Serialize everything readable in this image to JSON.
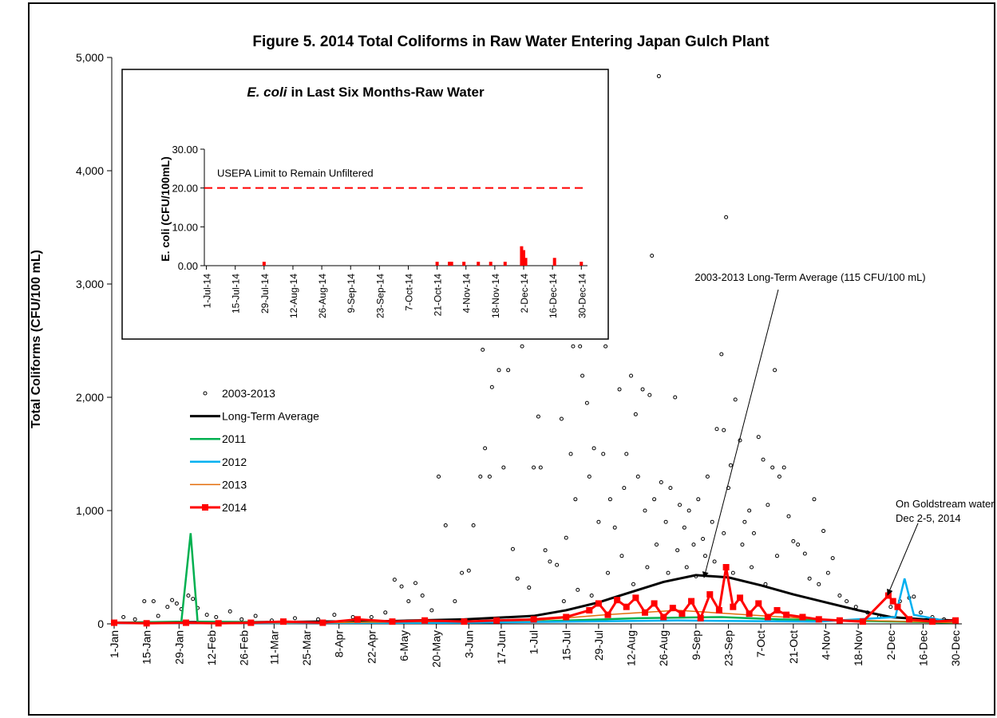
{
  "chart_data": [
    {
      "type": "line",
      "title": "Figure 5. 2014 Total Coliforms in Raw Water Entering Japan Gulch Plant",
      "ylabel": "Total Coliforms (CFU/100 mL)",
      "xlim": [
        "1-Jan",
        "31-Dec"
      ],
      "xticks": [
        "1-Jan",
        "15-Jan",
        "29-Jan",
        "12-Feb",
        "26-Feb",
        "11-Mar",
        "25-Mar",
        "8-Apr",
        "22-Apr",
        "6-May",
        "20-May",
        "3-Jun",
        "17-Jun",
        "1-Jul",
        "15-Jul",
        "29-Jul",
        "12-Aug",
        "26-Aug",
        "9-Sep",
        "23-Sep",
        "7-Oct",
        "21-Oct",
        "4-Nov",
        "18-Nov",
        "2-Dec",
        "16-Dec",
        "30-Dec"
      ],
      "ylim": [
        0,
        5000
      ],
      "yticks": [
        0,
        {
          "value": 1000,
          "label": "1,000"
        },
        {
          "value": 2000,
          "label": "2,000"
        },
        {
          "value": 3000,
          "label": "3,000"
        },
        {
          "value": 4000,
          "label": "4,000"
        },
        {
          "value": 5000,
          "label": "5,000"
        }
      ],
      "series": [
        {
          "name": "2003-2013",
          "color": "#000000",
          "marker": "circle",
          "line": false,
          "x": [
            "5-Jan",
            "10-Jan",
            "14-Jan",
            "18-Jan",
            "20-Jan",
            "24-Jan",
            "26-Jan",
            "28-Jan",
            "30-Jan",
            "2-Feb",
            "4-Feb",
            "6-Feb",
            "10-Feb",
            "14-Feb",
            "20-Feb",
            "25-Feb",
            "3-Mar",
            "10-Mar",
            "20-Mar",
            "30-Mar",
            "6-Apr",
            "14-Apr",
            "22-Apr",
            "28-Apr",
            "2-May",
            "5-May",
            "8-May",
            "11-May",
            "14-May",
            "18-May",
            "21-May",
            "24-May",
            "28-May",
            "31-May",
            "3-Jun",
            "5-Jun",
            "8-Jun",
            "9-Jun",
            "10-Jun",
            "12-Jun",
            "13-Jun",
            "15-Jun",
            "16-Jun",
            "18-Jun",
            "20-Jun",
            "22-Jun",
            "24-Jun",
            "26-Jun",
            "27-Jun",
            "29-Jun",
            "1-Jul",
            "3-Jul",
            "4-Jul",
            "6-Jul",
            "8-Jul",
            "11-Jul",
            "13-Jul",
            "15-Jul",
            "17-Jul",
            "18-Jul",
            "19-Jul",
            "21-Jul",
            "22-Jul",
            "24-Jul",
            "25-Jul",
            "27-Jul",
            "29-Jul",
            "31-Jul",
            "1-Aug",
            "3-Aug",
            "5-Aug",
            "7-Aug",
            "9-Aug",
            "10-Aug",
            "12-Aug",
            "14-Aug",
            "15-Aug",
            "17-Aug",
            "18-Aug",
            "20-Aug",
            "21-Aug",
            "22-Aug",
            "24-Aug",
            "25-Aug",
            "27-Aug",
            "29-Aug",
            "31-Aug",
            "2-Sep",
            "4-Sep",
            "6-Sep",
            "8-Sep",
            "10-Sep",
            "12-Sep",
            "14-Sep",
            "16-Sep",
            "18-Sep",
            "20-Sep",
            "21-Sep",
            "22-Sep",
            "23-Sep",
            "24-Sep",
            "26-Sep",
            "28-Sep",
            "30-Sep",
            "2-Oct",
            "4-Oct",
            "6-Oct",
            "8-Oct",
            "10-Oct",
            "12-Oct",
            "13-Oct",
            "15-Oct",
            "17-Oct",
            "19-Oct",
            "21-Oct",
            "23-Oct",
            "26-Oct",
            "28-Oct",
            "30-Oct",
            "1-Nov",
            "3-Nov",
            "5-Nov",
            "7-Nov",
            "10-Nov",
            "13-Nov",
            "17-Nov",
            "22-Nov",
            "27-Nov",
            "2-Dec",
            "6-Dec",
            "10-Dec",
            "12-Dec",
            "15-Dec",
            "20-Dec",
            "25-Dec",
            "29-Dec",
            "14-Jul",
            "20-Jul",
            "26-Jul",
            "2-Aug",
            "8-Aug",
            "13-Aug",
            "19-Aug",
            "23-Aug",
            "28-Aug",
            "1-Sep",
            "5-Sep",
            "9-Sep",
            "13-Sep",
            "17-Sep",
            "21-Sep",
            "25-Sep",
            "29-Sep",
            "3-Oct",
            "9-Oct",
            "14-Oct"
          ],
          "values": [
            60,
            40,
            200,
            200,
            70,
            150,
            210,
            180,
            130,
            250,
            220,
            140,
            80,
            60,
            110,
            40,
            70,
            30,
            50,
            40,
            80,
            60,
            60,
            100,
            390,
            330,
            200,
            360,
            250,
            120,
            1300,
            870,
            200,
            450,
            470,
            870,
            1300,
            2420,
            1550,
            1300,
            2090,
            4835,
            2240,
            1380,
            2240,
            660,
            400,
            2450,
            4835,
            320,
            1380,
            1830,
            1380,
            650,
            550,
            520,
            1810,
            760,
            1500,
            2450,
            1100,
            2450,
            2190,
            1950,
            1300,
            1550,
            900,
            1500,
            2450,
            1100,
            850,
            2070,
            1200,
            1500,
            2190,
            1850,
            1300,
            2070,
            1000,
            2020,
            3250,
            1100,
            4835,
            1250,
            900,
            1200,
            2000,
            1050,
            850,
            1000,
            700,
            1100,
            750,
            1300,
            900,
            1720,
            2380,
            1710,
            3590,
            1200,
            1400,
            1980,
            1620,
            900,
            1000,
            800,
            1650,
            1450,
            1050,
            1380,
            2240,
            1300,
            1380,
            950,
            730,
            700,
            620,
            400,
            1100,
            350,
            820,
            450,
            580,
            250,
            200,
            150,
            100,
            60,
            150,
            200,
            230,
            240,
            100,
            60,
            40,
            30,
            200,
            300,
            250,
            450,
            600,
            350,
            500,
            700,
            450,
            650,
            500,
            420,
            600,
            550,
            800,
            450,
            700,
            500,
            350,
            600
          ]
        },
        {
          "name": "Long-Term Average",
          "color": "#000000",
          "line": true,
          "x": [
            "1-Jan",
            "1-Feb",
            "1-Mar",
            "1-Apr",
            "1-May",
            "1-Jun",
            "1-Jul",
            "15-Jul",
            "29-Jul",
            "12-Aug",
            "26-Aug",
            "9-Sep",
            "23-Sep",
            "7-Oct",
            "21-Oct",
            "4-Nov",
            "18-Nov",
            "2-Dec",
            "16-Dec",
            "30-Dec"
          ],
          "values": [
            10,
            15,
            15,
            20,
            25,
            40,
            70,
            120,
            190,
            280,
            370,
            430,
            410,
            340,
            260,
            190,
            120,
            60,
            40,
            30
          ]
        },
        {
          "name": "2011",
          "color": "#00b050",
          "line": true,
          "x": [
            "1-Jan",
            "30-Jan",
            "3-Feb",
            "6-Feb",
            "1-Apr",
            "1-Jul",
            "15-Aug",
            "20-Sep",
            "15-Oct",
            "30-Dec"
          ],
          "values": [
            10,
            20,
            800,
            20,
            10,
            20,
            50,
            60,
            40,
            10
          ]
        },
        {
          "name": "2012",
          "color": "#00b0f0",
          "line": true,
          "x": [
            "1-Jan",
            "1-Jun",
            "1-Sep",
            "1-Nov",
            "4-Dec",
            "8-Dec",
            "12-Dec",
            "30-Dec"
          ],
          "values": [
            5,
            10,
            30,
            20,
            60,
            400,
            80,
            10
          ]
        },
        {
          "name": "2013",
          "color": "#e36c09",
          "line": true,
          "x": [
            "1-Jan",
            "1-Apr",
            "1-Jul",
            "1-Aug",
            "1-Sep",
            "1-Oct",
            "1-Nov",
            "30-Dec"
          ],
          "values": [
            5,
            10,
            30,
            80,
            120,
            80,
            40,
            10
          ]
        },
        {
          "name": "2014",
          "color": "#ff0000",
          "marker": "square",
          "line": true,
          "x": [
            "1-Jan",
            "15-Jan",
            "1-Feb",
            "15-Feb",
            "1-Mar",
            "15-Mar",
            "1-Apr",
            "16-Apr",
            "1-May",
            "15-May",
            "1-Jun",
            "15-Jun",
            "1-Jul",
            "15-Jul",
            "25-Jul",
            "29-Jul",
            "2-Aug",
            "6-Aug",
            "10-Aug",
            "14-Aug",
            "18-Aug",
            "22-Aug",
            "26-Aug",
            "30-Aug",
            "3-Sep",
            "7-Sep",
            "11-Sep",
            "15-Sep",
            "19-Sep",
            "22-Sep",
            "25-Sep",
            "28-Sep",
            "2-Oct",
            "6-Oct",
            "10-Oct",
            "14-Oct",
            "18-Oct",
            "25-Oct",
            "1-Nov",
            "10-Nov",
            "20-Nov",
            "1-Dec",
            "3-Dec",
            "5-Dec",
            "10-Dec",
            "20-Dec",
            "30-Dec"
          ],
          "values": [
            10,
            5,
            10,
            5,
            10,
            20,
            10,
            40,
            20,
            30,
            20,
            30,
            40,
            60,
            120,
            180,
            80,
            210,
            150,
            230,
            100,
            180,
            60,
            140,
            90,
            200,
            50,
            260,
            120,
            500,
            150,
            230,
            90,
            180,
            60,
            120,
            80,
            60,
            40,
            30,
            20,
            250,
            200,
            150,
            40,
            20,
            30
          ]
        }
      ],
      "annotations": [
        {
          "text": "2003-2013  Long-Term Average (115 CFU/100 mL)"
        },
        {
          "text": [
            "On Goldstream water",
            "Dec 2-5, 2014"
          ]
        }
      ]
    },
    {
      "type": "bar",
      "title": [
        "E. coli",
        "in Last Six Months-Raw Water"
      ],
      "ylabel": "E. coli (CFU/100mL)",
      "color": "#ff0000",
      "xlim": [
        "30-Jun-14",
        "2-Jan-15"
      ],
      "xticks": [
        "1-Jul-14",
        "15-Jul-14",
        "29-Jul-14",
        "12-Aug-14",
        "26-Aug-14",
        "9-Sep-14",
        "23-Sep-14",
        "7-Oct-14",
        "21-Oct-14",
        "4-Nov-14",
        "18-Nov-14",
        "2-Dec-14",
        "16-Dec-14",
        "30-Dec-14"
      ],
      "ylim": [
        0,
        30
      ],
      "yticks": [
        {
          "value": 0,
          "label": "0.00"
        },
        {
          "value": 10,
          "label": "10.00"
        },
        {
          "value": 20,
          "label": "20.00"
        },
        {
          "value": 30,
          "label": "30.00"
        }
      ],
      "x": [
        "29-Jul-14",
        "21-Oct-14",
        "27-Oct-14",
        "28-Oct-14",
        "3-Nov-14",
        "10-Nov-14",
        "16-Nov-14",
        "23-Nov-14",
        "1-Dec-14",
        "2-Dec-14",
        "3-Dec-14",
        "17-Dec-14",
        "30-Dec-14"
      ],
      "values": [
        1,
        1,
        1,
        1,
        1,
        1,
        1,
        1,
        5,
        4,
        2,
        2,
        1
      ],
      "reference_line": {
        "value": 20,
        "label": "USEPA Limit to Remain Unfiltered",
        "color": "#ff0000"
      }
    }
  ]
}
